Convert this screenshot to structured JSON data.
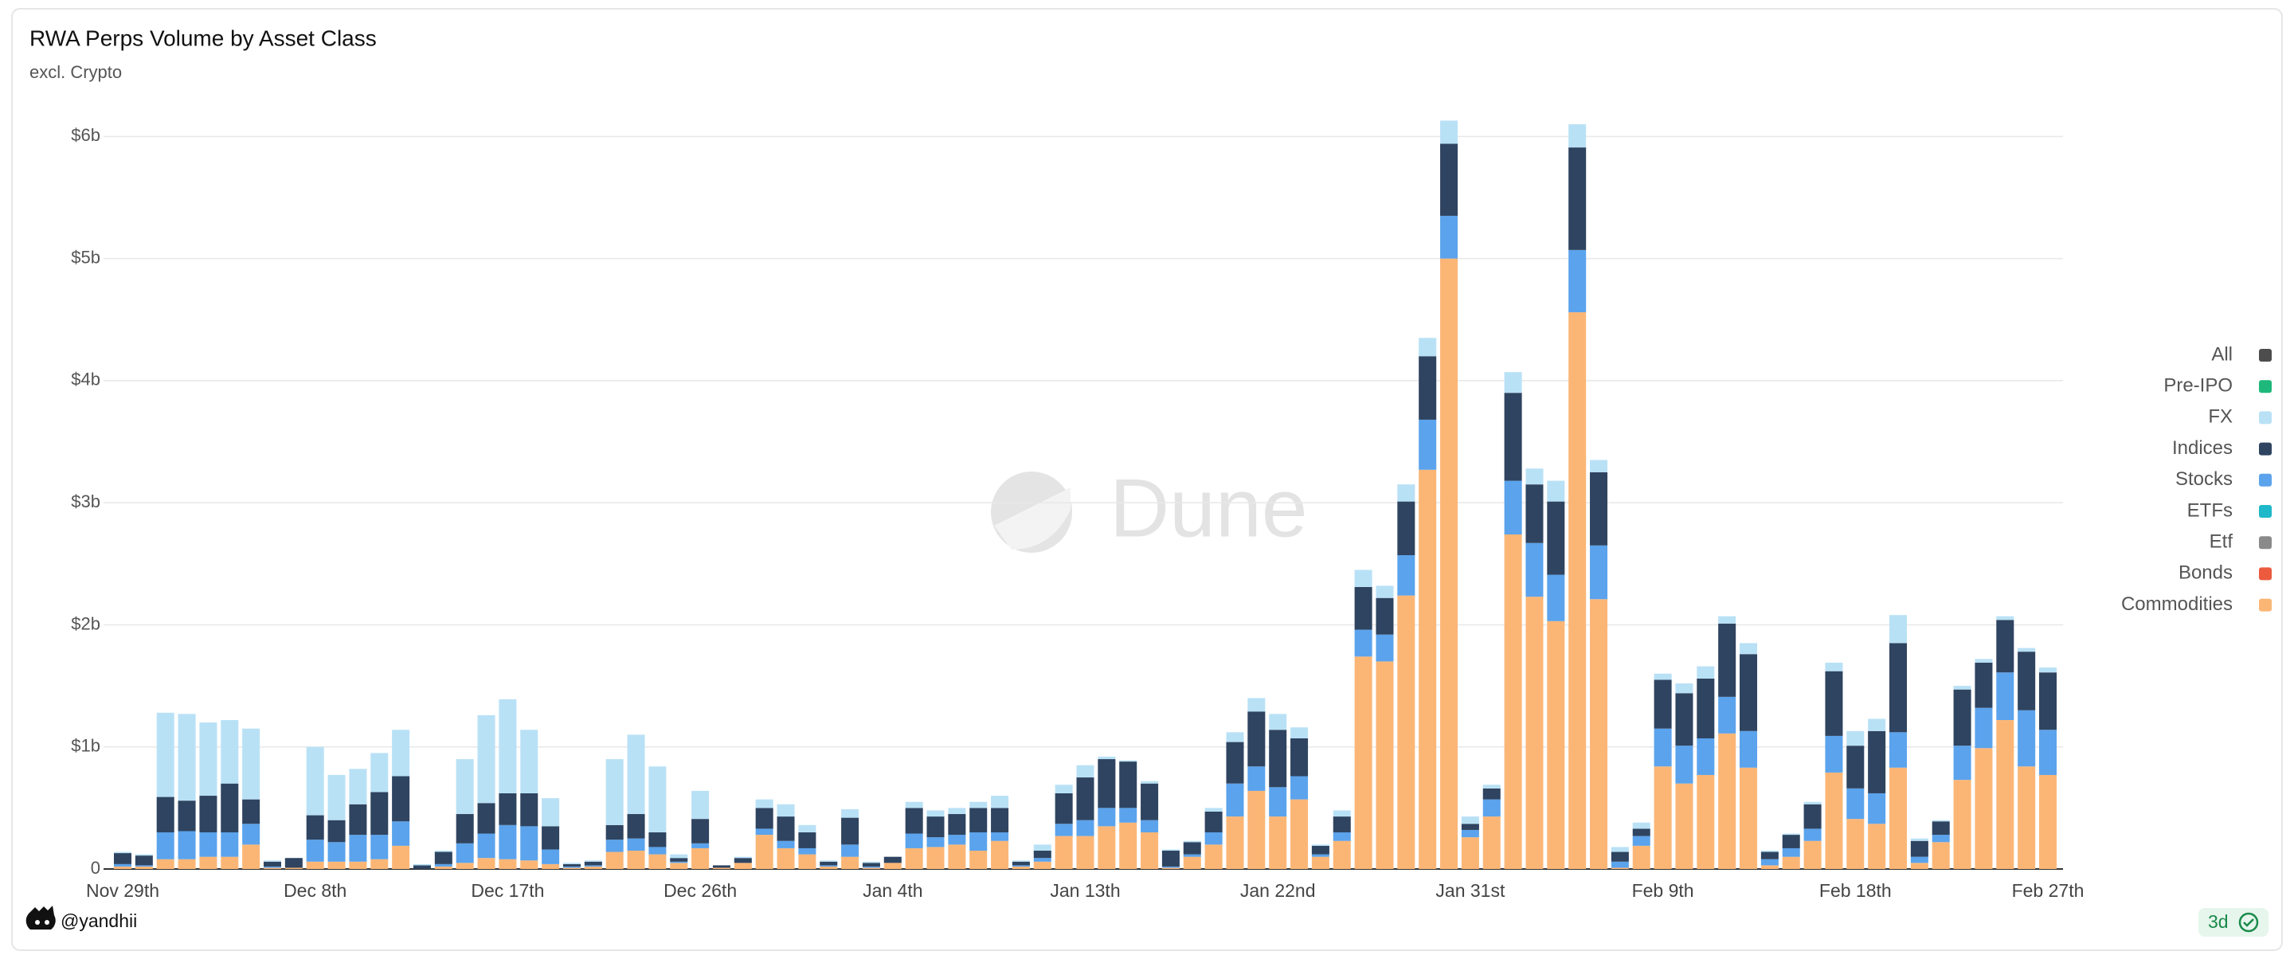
{
  "chart_data": {
    "type": "stacked-bar",
    "title": "RWA Perps Volume by Asset Class",
    "subtitle": "excl. Crypto",
    "categories": [
      "Nov 29th",
      null,
      null,
      null,
      null,
      null,
      null,
      null,
      null,
      "Dec 8th",
      null,
      null,
      null,
      null,
      null,
      null,
      null,
      null,
      "Dec 17th",
      null,
      null,
      null,
      null,
      null,
      null,
      null,
      null,
      "Dec 26th",
      null,
      null,
      null,
      null,
      null,
      null,
      null,
      null,
      "Jan 4th",
      null,
      null,
      null,
      null,
      null,
      null,
      null,
      null,
      "Jan 13th",
      null,
      null,
      null,
      null,
      null,
      null,
      null,
      null,
      "Jan 22nd",
      null,
      null,
      null,
      null,
      null,
      null,
      null,
      null,
      "Jan 31st",
      null,
      null,
      null,
      null,
      null,
      null,
      null,
      null,
      "Feb 9th",
      null,
      null,
      null,
      null,
      null,
      null,
      null,
      null,
      "Feb 18th",
      null,
      null,
      null,
      null,
      null,
      null,
      null,
      null,
      "Feb 27th"
    ],
    "series": [
      {
        "name": "All",
        "color": "#4d4d4d",
        "values": [
          0,
          0,
          0,
          0,
          0,
          0,
          0,
          0,
          0,
          0,
          0,
          0,
          0,
          0,
          0,
          0,
          0,
          0,
          0,
          0,
          0,
          0,
          0,
          0,
          0,
          0,
          0,
          0,
          0,
          0,
          0,
          0,
          0,
          0,
          0,
          0,
          0,
          0,
          0,
          0,
          0,
          0,
          0,
          0,
          0,
          0,
          0,
          0,
          0,
          0,
          0,
          0,
          0,
          0,
          0,
          0,
          0,
          0,
          0,
          0,
          0,
          0,
          0,
          0,
          0,
          0,
          0,
          0,
          0,
          0,
          0,
          0,
          0,
          0,
          0,
          0,
          0,
          0,
          0,
          0,
          0,
          0,
          0,
          0,
          0,
          0,
          0,
          0,
          0,
          0,
          0
        ]
      },
      {
        "name": "Pre-IPO",
        "color": "#1db87a",
        "values": [
          0,
          0,
          0,
          0,
          0,
          0,
          0,
          0,
          0,
          0,
          0,
          0,
          0,
          0,
          0,
          0,
          0,
          0,
          0,
          0,
          0,
          0,
          0,
          0,
          0,
          0,
          0,
          0,
          0,
          0,
          0,
          0,
          0,
          0,
          0,
          0,
          0,
          0,
          0,
          0,
          0,
          0,
          0,
          0,
          0,
          0,
          0,
          0,
          0,
          0,
          0,
          0,
          0,
          0,
          0,
          0,
          0,
          0,
          0,
          0,
          0,
          0,
          0,
          0,
          0,
          0,
          0,
          0,
          0,
          0,
          0,
          0,
          0,
          0,
          0,
          0,
          0,
          0,
          0,
          0,
          0,
          0,
          0,
          0,
          0,
          0,
          0,
          0,
          0,
          0,
          0
        ]
      },
      {
        "name": "FX",
        "color": "#b9e1f6",
        "values": [
          0.01,
          0.01,
          0.69,
          0.71,
          0.6,
          0.52,
          0.58,
          0.01,
          0,
          0.56,
          0.37,
          0.29,
          0.32,
          0.38,
          0.01,
          0.01,
          0.45,
          0.72,
          0.77,
          0.52,
          0.23,
          0.01,
          0.01,
          0.54,
          0.65,
          0.54,
          0.03,
          0.23,
          0,
          0.01,
          0.07,
          0.1,
          0.06,
          0.01,
          0.07,
          0.01,
          0,
          0.05,
          0.05,
          0.05,
          0.05,
          0.1,
          0.01,
          0.05,
          0.07,
          0.1,
          0.02,
          0.01,
          0.02,
          0.01,
          0.01,
          0.03,
          0.08,
          0.11,
          0.13,
          0.09,
          0.01,
          0.05,
          0.14,
          0.1,
          0.14,
          0.15,
          0.19,
          0.06,
          0.03,
          0.17,
          0.13,
          0.17,
          0.19,
          0.1,
          0.04,
          0.05,
          0.05,
          0.08,
          0.1,
          0.06,
          0.09,
          0.01,
          0.01,
          0.02,
          0.07,
          0.12,
          0.1,
          0.23,
          0.02,
          0.01,
          0.03,
          0.03,
          0.03,
          0.03,
          0.04
        ]
      },
      {
        "name": "Indices",
        "color": "#2f4460",
        "values": [
          0.09,
          0.08,
          0.29,
          0.25,
          0.3,
          0.4,
          0.2,
          0.04,
          0.08,
          0.2,
          0.18,
          0.25,
          0.35,
          0.37,
          0.03,
          0.1,
          0.24,
          0.25,
          0.26,
          0.27,
          0.19,
          0.02,
          0.03,
          0.12,
          0.2,
          0.12,
          0.03,
          0.2,
          0.02,
          0.04,
          0.17,
          0.2,
          0.13,
          0.03,
          0.22,
          0.03,
          0.05,
          0.21,
          0.17,
          0.17,
          0.2,
          0.2,
          0.03,
          0.06,
          0.25,
          0.35,
          0.4,
          0.38,
          0.3,
          0.13,
          0.1,
          0.17,
          0.34,
          0.45,
          0.47,
          0.31,
          0.07,
          0.13,
          0.35,
          0.3,
          0.44,
          0.52,
          0.59,
          0.05,
          0.09,
          0.72,
          0.48,
          0.6,
          0.84,
          0.6,
          0.08,
          0.06,
          0.4,
          0.43,
          0.49,
          0.6,
          0.63,
          0.06,
          0.11,
          0.2,
          0.53,
          0.35,
          0.51,
          0.73,
          0.13,
          0.11,
          0.46,
          0.37,
          0.43,
          0.48,
          0.47
        ]
      },
      {
        "name": "Stocks",
        "color": "#5ba3ec",
        "values": [
          0.02,
          0.01,
          0.22,
          0.23,
          0.2,
          0.2,
          0.17,
          0.01,
          0,
          0.18,
          0.16,
          0.22,
          0.2,
          0.2,
          0,
          0.02,
          0.16,
          0.2,
          0.28,
          0.28,
          0.12,
          0.01,
          0.01,
          0.1,
          0.1,
          0.06,
          0.01,
          0.04,
          0,
          0,
          0.05,
          0.06,
          0.05,
          0.01,
          0.1,
          0.01,
          0,
          0.12,
          0.08,
          0.08,
          0.15,
          0.07,
          0.01,
          0.03,
          0.1,
          0.13,
          0.15,
          0.12,
          0.1,
          0.01,
          0.02,
          0.1,
          0.27,
          0.2,
          0.24,
          0.19,
          0.02,
          0.07,
          0.22,
          0.22,
          0.33,
          0.41,
          0.35,
          0.06,
          0.14,
          0.44,
          0.44,
          0.38,
          0.51,
          0.44,
          0.05,
          0.08,
          0.31,
          0.31,
          0.3,
          0.3,
          0.3,
          0.05,
          0.07,
          0.1,
          0.3,
          0.25,
          0.25,
          0.29,
          0.05,
          0.06,
          0.28,
          0.33,
          0.39,
          0.46,
          0.37
        ]
      },
      {
        "name": "ETFs",
        "color": "#1fb8c9",
        "values": [
          0,
          0,
          0,
          0,
          0,
          0,
          0,
          0,
          0,
          0,
          0,
          0,
          0,
          0,
          0,
          0,
          0,
          0,
          0,
          0,
          0,
          0,
          0,
          0,
          0,
          0,
          0,
          0,
          0,
          0,
          0,
          0,
          0,
          0,
          0,
          0,
          0,
          0,
          0,
          0,
          0,
          0,
          0,
          0,
          0,
          0,
          0,
          0,
          0,
          0,
          0,
          0,
          0,
          0,
          0,
          0,
          0,
          0,
          0,
          0,
          0,
          0,
          0,
          0,
          0,
          0,
          0,
          0,
          0,
          0,
          0,
          0,
          0,
          0,
          0,
          0,
          0,
          0,
          0,
          0,
          0,
          0,
          0,
          0,
          0,
          0,
          0,
          0,
          0,
          0,
          0
        ]
      },
      {
        "name": "Etf",
        "color": "#8a8a8a",
        "values": [
          0,
          0,
          0,
          0,
          0,
          0,
          0,
          0,
          0,
          0,
          0,
          0,
          0,
          0,
          0,
          0,
          0,
          0,
          0,
          0,
          0,
          0,
          0,
          0,
          0,
          0,
          0,
          0,
          0,
          0,
          0,
          0,
          0,
          0,
          0,
          0,
          0,
          0,
          0,
          0,
          0,
          0,
          0,
          0,
          0,
          0,
          0,
          0,
          0,
          0,
          0,
          0,
          0,
          0,
          0,
          0,
          0,
          0,
          0,
          0,
          0,
          0,
          0,
          0,
          0,
          0,
          0,
          0,
          0,
          0,
          0,
          0,
          0,
          0,
          0,
          0,
          0,
          0,
          0,
          0,
          0,
          0,
          0,
          0,
          0,
          0,
          0,
          0,
          0,
          0,
          0
        ]
      },
      {
        "name": "Bonds",
        "color": "#ec5b3e",
        "values": [
          0,
          0,
          0,
          0,
          0,
          0,
          0,
          0,
          0,
          0,
          0,
          0,
          0,
          0,
          0,
          0,
          0,
          0,
          0,
          0,
          0,
          0,
          0,
          0,
          0,
          0,
          0,
          0,
          0,
          0,
          0,
          0,
          0,
          0,
          0,
          0,
          0,
          0,
          0,
          0,
          0,
          0,
          0,
          0,
          0,
          0,
          0,
          0,
          0,
          0,
          0,
          0,
          0,
          0,
          0,
          0,
          0,
          0,
          0,
          0,
          0,
          0,
          0,
          0,
          0,
          0,
          0,
          0,
          0,
          0,
          0,
          0,
          0,
          0,
          0,
          0,
          0,
          0,
          0,
          0,
          0,
          0,
          0,
          0,
          0,
          0,
          0,
          0,
          0,
          0,
          0
        ]
      },
      {
        "name": "Commodities",
        "color": "#fbb676",
        "values": [
          0.02,
          0.02,
          0.08,
          0.08,
          0.1,
          0.1,
          0.2,
          0.01,
          0.01,
          0.06,
          0.06,
          0.06,
          0.08,
          0.19,
          0,
          0.02,
          0.05,
          0.09,
          0.08,
          0.07,
          0.04,
          0.01,
          0.02,
          0.14,
          0.15,
          0.12,
          0.05,
          0.17,
          0.01,
          0.05,
          0.28,
          0.17,
          0.12,
          0.02,
          0.1,
          0.01,
          0.05,
          0.17,
          0.18,
          0.2,
          0.15,
          0.23,
          0.02,
          0.06,
          0.27,
          0.27,
          0.35,
          0.38,
          0.3,
          0.01,
          0.1,
          0.2,
          0.43,
          0.64,
          0.43,
          0.57,
          0.1,
          0.23,
          1.74,
          1.7,
          2.24,
          3.27,
          5.0,
          0.26,
          0.43,
          2.74,
          2.23,
          2.03,
          4.56,
          2.21,
          0.01,
          0.19,
          0.84,
          0.7,
          0.77,
          1.11,
          0.83,
          0.03,
          0.1,
          0.23,
          0.79,
          0.41,
          0.37,
          0.83,
          0.05,
          0.22,
          0.73,
          0.99,
          1.22,
          0.84,
          0.77
        ]
      }
    ],
    "ylim": [
      0,
      6.4
    ],
    "yticks": [
      0,
      {
        "value": 1,
        "label": "$1b"
      },
      {
        "value": 2,
        "label": "$2b"
      },
      {
        "value": 3,
        "label": "$3b"
      },
      {
        "value": 4,
        "label": "$4b"
      },
      {
        "value": 5,
        "label": "$5b"
      },
      {
        "value": 6,
        "label": "$6b"
      }
    ],
    "grid": true,
    "legend": "right"
  },
  "watermark": "Dune",
  "footer": {
    "author": "@yandhii",
    "badge": "3d"
  }
}
